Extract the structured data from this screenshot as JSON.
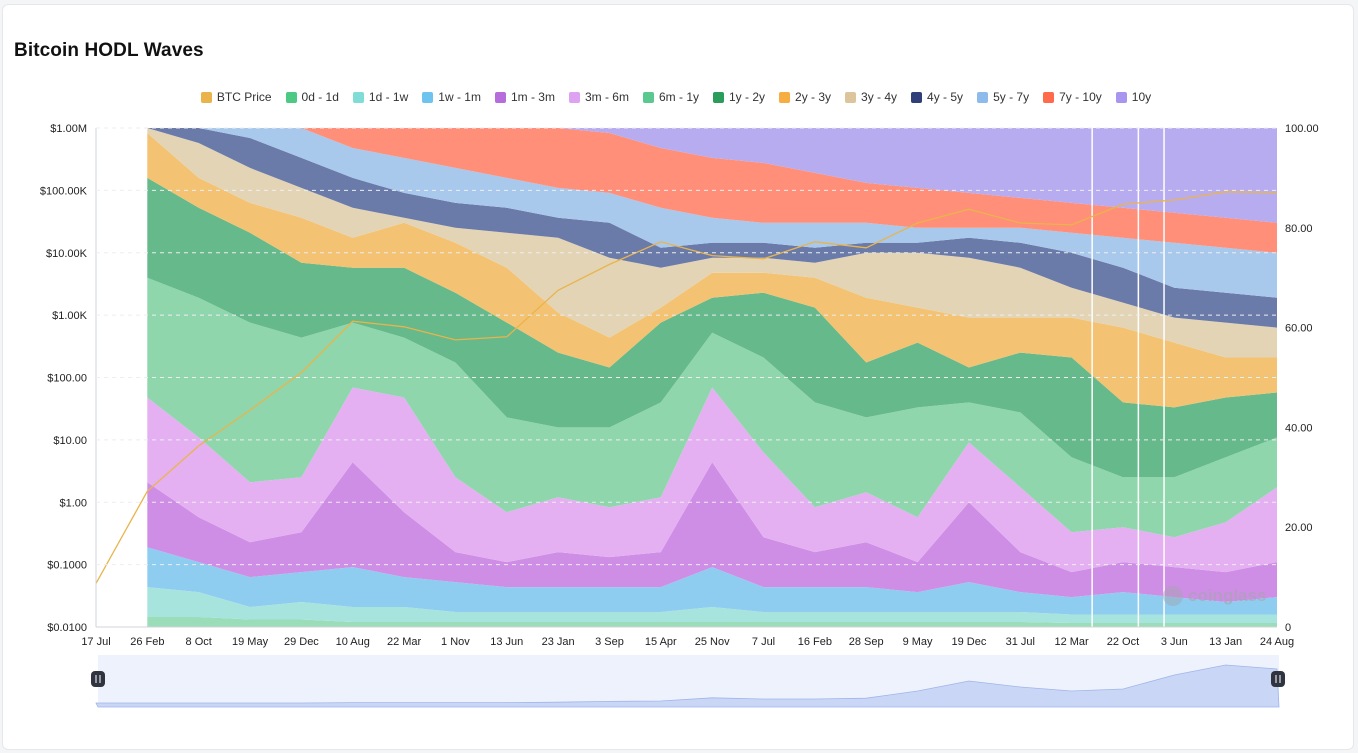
{
  "title": "Bitcoin HODL Waves",
  "watermark": "coinglass",
  "colors": {
    "btc_price": "#e9b44c",
    "axis_text": "#222222",
    "slider_fill": "#c9d6f5",
    "slider_bg": "#eef2fd",
    "divider": "#ffffff"
  },
  "chart_data": {
    "type": "area",
    "stacked": true,
    "percent_axis": {
      "position": "right",
      "range": [
        0,
        100
      ],
      "ticks": [
        "100.00",
        "80.00",
        "60.00",
        "40.00",
        "20.00",
        "0"
      ]
    },
    "price_axis": {
      "position": "left",
      "scale": "log",
      "range": [
        0.01,
        1000000
      ],
      "ticks": [
        "$1.00M",
        "$100.00K",
        "$10.00K",
        "$1.00K",
        "$100.00",
        "$10.00",
        "$1.00",
        "$0.1000",
        "$0.0100"
      ]
    },
    "x_ticks": [
      "17 Jul",
      "26 Feb",
      "8 Oct",
      "19 May",
      "29 Dec",
      "10 Aug",
      "22 Mar",
      "1 Nov",
      "13 Jun",
      "23 Jan",
      "3 Sep",
      "15 Apr",
      "25 Nov",
      "7 Jul",
      "16 Feb",
      "28 Sep",
      "9 May",
      "19 Dec",
      "31 Jul",
      "12 Mar",
      "22 Oct",
      "3 Jun",
      "13 Jan",
      "24 Aug"
    ],
    "legend": [
      {
        "name": "BTC Price",
        "color": "#e9b44c"
      },
      {
        "name": "0d - 1d",
        "color": "#4cc982"
      },
      {
        "name": "1d - 1w",
        "color": "#7fdcd6"
      },
      {
        "name": "1w - 1m",
        "color": "#6fc3ef"
      },
      {
        "name": "1m - 3m",
        "color": "#b66ddb"
      },
      {
        "name": "3m - 6m",
        "color": "#dda2f1"
      },
      {
        "name": "6m - 1y",
        "color": "#5bc88f"
      },
      {
        "name": "1y - 2y",
        "color": "#2a9d5c"
      },
      {
        "name": "2y - 3y",
        "color": "#f6ad42"
      },
      {
        "name": "3y - 4y",
        "color": "#dcc59c"
      },
      {
        "name": "4y - 5y",
        "color": "#2e3f7a"
      },
      {
        "name": "5y - 7y",
        "color": "#8fbbeb"
      },
      {
        "name": "7y - 10y",
        "color": "#ff6a4d"
      },
      {
        "name": "10y",
        "color": "#a895f0"
      }
    ],
    "bands": [
      {
        "name": "0d - 1d",
        "color": "#9bdcb9",
        "cum_top": [
          0,
          2,
          2,
          1.5,
          1.5,
          1,
          1,
          1,
          1,
          1,
          1,
          1,
          1,
          1,
          1,
          1,
          1,
          1,
          1,
          0.8,
          0.8,
          0.8,
          0.8,
          0.8
        ]
      },
      {
        "name": "1d - 1w",
        "color": "#a8e4de",
        "cum_top": [
          0,
          8,
          7,
          4,
          5,
          4,
          4,
          3,
          3,
          3,
          3,
          3,
          4,
          3,
          3,
          3,
          3,
          3,
          3,
          2.5,
          2.5,
          2.5,
          2.5,
          2.5
        ]
      },
      {
        "name": "1w - 1m",
        "color": "#8fcdf0",
        "cum_top": [
          0,
          16,
          13,
          10,
          11,
          12,
          10,
          9,
          8,
          8,
          8,
          8,
          12,
          8,
          8,
          8,
          7,
          9,
          7,
          6,
          7,
          6,
          5,
          6
        ]
      },
      {
        "name": "1m - 3m",
        "color": "#cf8ee6",
        "cum_top": [
          0,
          29,
          22,
          17,
          19,
          33,
          23,
          15,
          13,
          15,
          14,
          15,
          33,
          18,
          15,
          17,
          13,
          25,
          15,
          11,
          13,
          12,
          11,
          13
        ]
      },
      {
        "name": "3m - 6m",
        "color": "#e4b0f1",
        "cum_top": [
          0,
          46,
          38,
          29,
          30,
          48,
          46,
          30,
          23,
          26,
          24,
          26,
          48,
          35,
          24,
          27,
          22,
          37,
          28,
          19,
          20,
          18,
          21,
          28
        ]
      },
      {
        "name": "6m - 1y",
        "color": "#8fd6ac",
        "cum_top": [
          0,
          70,
          66,
          61,
          58,
          61,
          58,
          53,
          42,
          40,
          40,
          45,
          59,
          54,
          45,
          42,
          44,
          45,
          43,
          34,
          30,
          30,
          34,
          38
        ]
      },
      {
        "name": "1y - 2y",
        "color": "#65b98a",
        "cum_top": [
          0,
          90,
          84,
          79,
          73,
          72,
          72,
          67,
          61,
          55,
          52,
          61,
          66,
          67,
          64,
          53,
          57,
          52,
          55,
          54,
          45,
          44,
          46,
          47
        ]
      },
      {
        "name": "2y - 3y",
        "color": "#f3c272",
        "cum_top": [
          0,
          99,
          90,
          85,
          82,
          78,
          81,
          77,
          72,
          63,
          58,
          64,
          71,
          71,
          70,
          66,
          64,
          62,
          62,
          62,
          60,
          57,
          54,
          54
        ]
      },
      {
        "name": "3y - 4y",
        "color": "#e4d4b6",
        "cum_top": [
          0,
          100,
          97,
          92,
          88,
          84,
          82,
          80,
          79,
          78,
          74,
          72,
          74,
          74,
          73,
          75,
          75,
          74,
          72,
          68,
          65,
          62,
          61,
          60
        ]
      },
      {
        "name": "4y - 5y",
        "color": "#6b7ba9",
        "cum_top": [
          0,
          100,
          100,
          98,
          94,
          90,
          87,
          85,
          84,
          82,
          81,
          76,
          77,
          77,
          76,
          77,
          77,
          78,
          77,
          75,
          72,
          68,
          67,
          66
        ]
      },
      {
        "name": "5y - 7y",
        "color": "#a8c8ec",
        "cum_top": [
          0,
          100,
          100,
          100,
          100,
          96,
          94,
          92,
          90,
          88,
          87,
          84,
          82,
          81,
          81,
          81,
          80,
          80,
          80,
          79,
          78,
          77,
          76,
          75
        ]
      },
      {
        "name": "7y - 10y",
        "color": "#ff8f78",
        "cum_top": [
          0,
          100,
          100,
          100,
          100,
          100,
          100,
          100,
          100,
          100,
          99,
          96,
          94,
          93,
          91,
          89,
          88,
          87,
          86,
          85,
          84,
          83,
          82,
          81
        ]
      },
      {
        "name": "10y",
        "color": "#b8acf0",
        "cum_top": [
          0,
          100,
          100,
          100,
          100,
          100,
          100,
          100,
          100,
          100,
          100,
          100,
          100,
          100,
          100,
          100,
          100,
          100,
          100,
          100,
          100,
          100,
          100,
          100
        ]
      }
    ],
    "btc_price": {
      "name": "BTC Price",
      "values": [
        0.05,
        1.5,
        8,
        30,
        120,
        800,
        650,
        400,
        450,
        2500,
        6500,
        15000,
        9000,
        8000,
        15000,
        12000,
        30000,
        50000,
        30000,
        28000,
        60000,
        70000,
        95000,
        92000
      ]
    },
    "navigator": {
      "values": [
        0,
        0,
        0,
        0,
        0,
        0.01,
        0.01,
        0.01,
        0.01,
        0.02,
        0.04,
        0.05,
        0.13,
        0.1,
        0.1,
        0.12,
        0.3,
        0.55,
        0.4,
        0.3,
        0.35,
        0.7,
        0.95,
        0.85
      ]
    }
  }
}
